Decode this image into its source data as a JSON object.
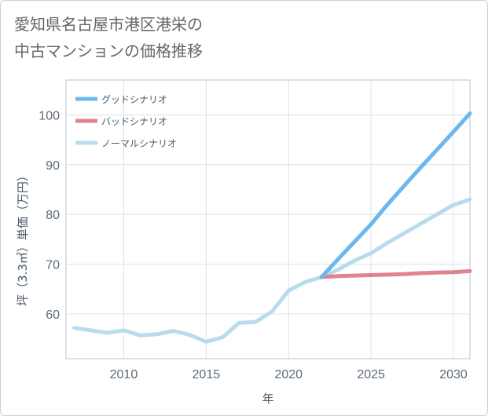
{
  "chart_data": {
    "type": "line",
    "title_line1": "愛知県名古屋市港区港栄の",
    "title_line2": "中古マンションの価格推移",
    "xlabel": "年",
    "ylabel": "坪（3.3㎡）単価（万円）",
    "xlim": [
      2006.5,
      2031
    ],
    "ylim": [
      51,
      107
    ],
    "x_ticks": [
      2010,
      2015,
      2020,
      2025,
      2030
    ],
    "y_ticks": [
      60,
      70,
      80,
      90,
      100
    ],
    "grid": true,
    "legend_position": "top-left",
    "series": [
      {
        "name": "グッドシナリオ",
        "color": "#6cb8ee",
        "x": [
          2022,
          2023,
          2024,
          2025,
          2026,
          2027,
          2028,
          2029,
          2030,
          2031
        ],
        "values": [
          67.4,
          71.0,
          74.5,
          78.0,
          82.0,
          85.7,
          89.4,
          93.0,
          96.6,
          100.3
        ]
      },
      {
        "name": "バッドシナリオ",
        "color": "#e0838f",
        "x": [
          2022,
          2023,
          2024,
          2025,
          2026,
          2027,
          2028,
          2029,
          2030,
          2031
        ],
        "values": [
          67.4,
          67.6,
          67.7,
          67.8,
          67.9,
          68.0,
          68.2,
          68.3,
          68.4,
          68.6
        ]
      },
      {
        "name": "ノーマルシナリオ",
        "color": "#b9dcec",
        "x": [
          2007,
          2008,
          2009,
          2010,
          2011,
          2012,
          2013,
          2014,
          2015,
          2016,
          2017,
          2018,
          2019,
          2020,
          2021,
          2022,
          2023,
          2024,
          2025,
          2026,
          2027,
          2028,
          2029,
          2030,
          2031
        ],
        "values": [
          57.2,
          56.7,
          56.2,
          56.7,
          55.7,
          55.9,
          56.6,
          55.8,
          54.4,
          55.3,
          58.2,
          58.4,
          60.5,
          64.7,
          66.4,
          67.4,
          68.9,
          70.7,
          72.2,
          74.3,
          76.2,
          78.1,
          80.0,
          81.9,
          83.0
        ]
      }
    ]
  }
}
